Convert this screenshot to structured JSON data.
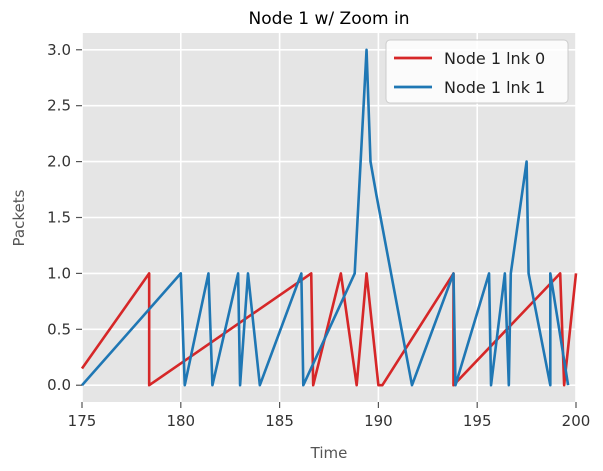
{
  "chart_data": {
    "type": "line",
    "title": "Node 1 w/ Zoom in",
    "xlabel": "Time",
    "ylabel": "Packets",
    "xlim": [
      175,
      200
    ],
    "ylim": [
      -0.15,
      3.15
    ],
    "xticks": [
      "175",
      "180",
      "185",
      "190",
      "195",
      "200"
    ],
    "yticks": [
      "0.0",
      "0.5",
      "1.0",
      "1.5",
      "2.0",
      "2.5",
      "3.0"
    ],
    "grid": true,
    "legend_position": "top-right",
    "series": [
      {
        "name": "Node 1 lnk 0",
        "color": "#d62728",
        "x": [
          175.0,
          178.4,
          178.4,
          186.6,
          186.7,
          188.1,
          188.9,
          189.4,
          190.0,
          190.2,
          193.8,
          193.8,
          199.2,
          199.4,
          200.0
        ],
        "y": [
          0.15,
          1.0,
          0.0,
          1.0,
          0.0,
          1.0,
          0.0,
          1.0,
          0.0,
          0.0,
          1.0,
          0.0,
          1.0,
          0.0,
          1.0
        ]
      },
      {
        "name": "Node 1 lnk 1",
        "color": "#1f77b4",
        "x": [
          175.0,
          180.0,
          180.2,
          181.4,
          181.6,
          182.9,
          183.0,
          183.4,
          184.0,
          186.1,
          186.2,
          188.8,
          189.1,
          189.4,
          189.6,
          189.9,
          191.7,
          193.8,
          193.9,
          195.6,
          195.7,
          196.4,
          196.6,
          196.7,
          197.5,
          197.6,
          198.7,
          198.7,
          199.6
        ],
        "y": [
          0.0,
          1.0,
          0.0,
          1.0,
          0.0,
          1.0,
          0.0,
          1.0,
          0.0,
          1.0,
          0.0,
          1.0,
          2.0,
          3.0,
          2.0,
          1.7,
          0.0,
          1.0,
          0.0,
          1.0,
          0.0,
          1.0,
          0.0,
          1.0,
          2.0,
          1.0,
          0.0,
          1.0,
          0.0
        ]
      }
    ]
  }
}
